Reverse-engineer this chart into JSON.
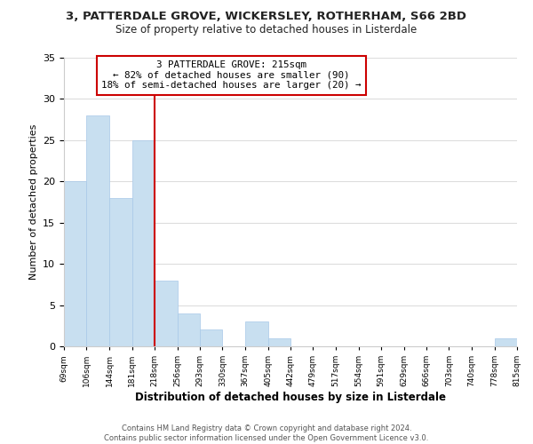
{
  "title": "3, PATTERDALE GROVE, WICKERSLEY, ROTHERHAM, S66 2BD",
  "subtitle": "Size of property relative to detached houses in Listerdale",
  "xlabel": "Distribution of detached houses by size in Listerdale",
  "ylabel": "Number of detached properties",
  "bar_color": "#c8dff0",
  "bar_edge_color": "#a8c8e8",
  "vline_x": 218,
  "vline_color": "#cc0000",
  "annotation_line1": "3 PATTERDALE GROVE: 215sqm",
  "annotation_line2": "← 82% of detached houses are smaller (90)",
  "annotation_line3": "18% of semi-detached houses are larger (20) →",
  "bin_edges": [
    69,
    106,
    144,
    181,
    218,
    256,
    293,
    330,
    367,
    405,
    442,
    479,
    517,
    554,
    591,
    629,
    666,
    703,
    740,
    778,
    815
  ],
  "bin_counts": [
    20,
    28,
    18,
    25,
    8,
    4,
    2,
    0,
    3,
    1,
    0,
    0,
    0,
    0,
    0,
    0,
    0,
    0,
    0,
    1
  ],
  "ylim": [
    0,
    35
  ],
  "yticks": [
    0,
    5,
    10,
    15,
    20,
    25,
    30,
    35
  ],
  "tick_labels": [
    "69sqm",
    "106sqm",
    "144sqm",
    "181sqm",
    "218sqm",
    "256sqm",
    "293sqm",
    "330sqm",
    "367sqm",
    "405sqm",
    "442sqm",
    "479sqm",
    "517sqm",
    "554sqm",
    "591sqm",
    "629sqm",
    "666sqm",
    "703sqm",
    "740sqm",
    "778sqm",
    "815sqm"
  ],
  "footer_line1": "Contains HM Land Registry data © Crown copyright and database right 2024.",
  "footer_line2": "Contains public sector information licensed under the Open Government Licence v3.0.",
  "bg_color": "#ffffff",
  "grid_color": "#dddddd",
  "annotation_box_color": "#ffffff",
  "annotation_box_edge": "#cc0000",
  "title_fontsize": 9.5,
  "subtitle_fontsize": 8.5,
  "ylabel_fontsize": 8,
  "xlabel_fontsize": 8.5
}
